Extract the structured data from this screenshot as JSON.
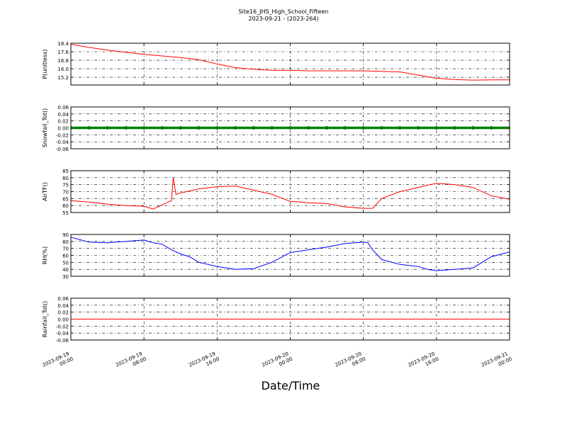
{
  "title": "Site16_JHS_High_School_Fifteen",
  "subtitle": "2023-09-21 - (2023-264)",
  "xlabel": "Date/Time",
  "x": [
    "2023-09-19 00:00",
    "2023-09-19 02:00",
    "2023-09-19 04:00",
    "2023-09-19 06:00",
    "2023-09-19 08:00",
    "2023-09-19 10:00",
    "2023-09-19 12:00",
    "2023-09-19 14:00",
    "2023-09-19 16:00",
    "2023-09-19 18:00",
    "2023-09-19 20:00",
    "2023-09-19 22:00",
    "2023-09-20 00:00",
    "2023-09-20 02:00",
    "2023-09-20 04:00",
    "2023-09-20 06:00",
    "2023-09-20 08:00",
    "2023-09-20 10:00",
    "2023-09-20 12:00",
    "2023-09-20 14:00",
    "2023-09-20 16:00",
    "2023-09-20 18:00",
    "2023-09-20 20:00",
    "2023-09-20 22:00",
    "2023-09-21 00:00"
  ],
  "xlim": [
    "2023-09-19 00:00",
    "2023-09-21 00:00"
  ],
  "xticks": [
    "2023-09-19 00:00",
    "2023-09-19 08:00",
    "2023-09-19 16:00",
    "2023-09-20 00:00",
    "2023-09-20 08:00",
    "2023-09-20 16:00",
    "2023-09-21 00:00"
  ],
  "chart_data": [
    {
      "type": "line",
      "ylabel": "P(unitless)",
      "color": "#ff0000",
      "grid": true,
      "ylim": [
        14.47,
        18.4
      ],
      "yticks": [
        15.2,
        {
          "value": 16,
          "label": "16.0"
        },
        16.8,
        17.6,
        18.4
      ],
      "values": [
        18.3,
        18.0,
        17.75,
        17.55,
        17.35,
        17.2,
        17.05,
        16.85,
        16.45,
        16.1,
        15.95,
        15.85,
        15.85,
        15.8,
        15.8,
        15.8,
        15.8,
        15.75,
        15.7,
        15.4,
        15.1,
        14.98,
        14.93,
        14.95,
        14.95
      ]
    },
    {
      "type": "scatter",
      "ylabel": "Snowfall_Tot()",
      "color": "#008000",
      "grid": true,
      "ylim": [
        -0.06,
        0.06
      ],
      "yticks": [
        -0.06,
        -0.04,
        -0.02,
        {
          "value": 0,
          "label": "0.00"
        },
        0.02,
        0.04,
        0.06
      ],
      "values": [
        0,
        0,
        0,
        0,
        0,
        0,
        0,
        0,
        0,
        0,
        0,
        0,
        0,
        0,
        0,
        0,
        0,
        0,
        0,
        0,
        0,
        0,
        0,
        0,
        0
      ]
    },
    {
      "type": "line",
      "ylabel": "AirTF()",
      "color": "#ff0000",
      "grid": true,
      "ylim": [
        55,
        85
      ],
      "yticks": [
        55,
        60,
        65,
        70,
        75,
        80,
        85
      ],
      "x": [
        "2023-09-19 00:00",
        "2023-09-19 02:00",
        "2023-09-19 04:00",
        "2023-09-19 06:00",
        "2023-09-19 08:00",
        "2023-09-19 09:00",
        "2023-09-19 10:00",
        "2023-09-19 11:00",
        "2023-09-19 11:12",
        "2023-09-19 11:30",
        "2023-09-19 12:00",
        "2023-09-19 14:00",
        "2023-09-19 16:00",
        "2023-09-19 18:00",
        "2023-09-19 20:00",
        "2023-09-19 22:00",
        "2023-09-20 00:00",
        "2023-09-20 02:00",
        "2023-09-20 04:00",
        "2023-09-20 06:00",
        "2023-09-20 08:00",
        "2023-09-20 09:00",
        "2023-09-20 10:00",
        "2023-09-20 12:00",
        "2023-09-20 14:00",
        "2023-09-20 16:00",
        "2023-09-20 18:00",
        "2023-09-20 20:00",
        "2023-09-20 22:00",
        "2023-09-21 00:00"
      ],
      "values": [
        63.5,
        62.5,
        61,
        60,
        59.5,
        57.5,
        60.5,
        63.5,
        80,
        68,
        69,
        72,
        73.5,
        74,
        71,
        68,
        63,
        62,
        61.5,
        59,
        58,
        58,
        65,
        70,
        73,
        76,
        75,
        73,
        67,
        64.5
      ]
    },
    {
      "type": "line",
      "ylabel": "RH(%)",
      "color": "#0000ff",
      "grid": true,
      "ylim": [
        30,
        90
      ],
      "yticks": [
        30,
        40,
        50,
        60,
        70,
        80,
        90
      ],
      "x": [
        "2023-09-19 00:00",
        "2023-09-19 02:00",
        "2023-09-19 04:00",
        "2023-09-19 06:00",
        "2023-09-19 08:00",
        "2023-09-19 09:00",
        "2023-09-19 10:00",
        "2023-09-19 11:00",
        "2023-09-19 12:00",
        "2023-09-19 13:00",
        "2023-09-19 14:00",
        "2023-09-19 16:00",
        "2023-09-19 18:00",
        "2023-09-19 20:00",
        "2023-09-19 22:00",
        "2023-09-20 00:00",
        "2023-09-20 02:00",
        "2023-09-20 04:00",
        "2023-09-20 06:00",
        "2023-09-20 08:00",
        "2023-09-20 08:30",
        "2023-09-20 09:00",
        "2023-09-20 10:00",
        "2023-09-20 12:00",
        "2023-09-20 14:00",
        "2023-09-20 15:00",
        "2023-09-20 16:00",
        "2023-09-20 18:00",
        "2023-09-20 20:00",
        "2023-09-20 22:00",
        "2023-09-21 00:00"
      ],
      "values": [
        86,
        79,
        78,
        80,
        82,
        78,
        76,
        68,
        62,
        58,
        50,
        44,
        40,
        41,
        50,
        64,
        68,
        72,
        77,
        79,
        78,
        68,
        54,
        47,
        44,
        40,
        38,
        40,
        42,
        58,
        65
      ]
    },
    {
      "type": "line",
      "ylabel": "Rainfall_Tot()",
      "color": "#ff0000",
      "grid": true,
      "ylim": [
        -0.06,
        0.06
      ],
      "yticks": [
        -0.06,
        -0.04,
        -0.02,
        {
          "value": 0,
          "label": "0.00"
        },
        0.02,
        0.04,
        0.06
      ],
      "values": [
        0,
        0,
        0,
        0,
        0,
        0,
        0,
        0,
        0,
        0,
        0,
        0,
        0,
        0,
        0,
        0,
        0,
        0,
        0,
        0,
        0,
        0,
        0,
        0,
        0
      ]
    }
  ]
}
